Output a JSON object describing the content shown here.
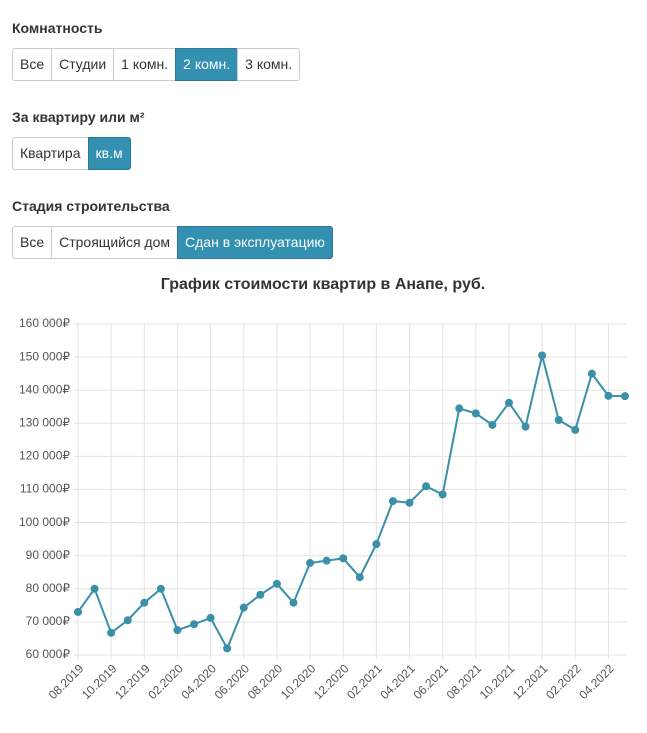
{
  "filters": [
    {
      "title": "Комнатность",
      "options": [
        "Все",
        "Студии",
        "1 комн.",
        "2 комн.",
        "3 комн."
      ],
      "active": 3
    },
    {
      "title": "За квартиру или м²",
      "options": [
        "Квартира",
        "кв.м"
      ],
      "active": 1
    },
    {
      "title": "Стадия строительства",
      "options": [
        "Все",
        "Строящийся дом",
        "Сдан в эксплуатацию"
      ],
      "active": 2
    }
  ],
  "chart_data": {
    "type": "line",
    "title": "График стоимости квартир в Анапе, руб.",
    "categories": [
      "08.2019",
      null,
      "10.2019",
      null,
      "12.2019",
      null,
      "02.2020",
      null,
      "04.2020",
      null,
      "06.2020",
      null,
      "08.2020",
      null,
      "10.2020",
      null,
      "12.2020",
      null,
      "02.2021",
      null,
      "04.2021",
      null,
      "06.2021",
      null,
      "08.2021",
      null,
      "10.2021",
      null,
      "12.2021",
      null,
      "02.2022",
      null,
      "04.2022",
      null
    ],
    "series": [
      {
        "color": "#3a8fa9",
        "values": [
          73000,
          80000,
          66700,
          70500,
          75800,
          80000,
          67500,
          69300,
          71200,
          62000,
          74300,
          78200,
          81500,
          75800,
          87800,
          88500,
          89200,
          83500,
          93500,
          106500,
          106000,
          111000,
          108500,
          134500,
          133000,
          129500,
          136200,
          129000,
          150500,
          131000,
          128000,
          145000,
          138300,
          138200
        ]
      }
    ],
    "ylim": [
      60000,
      160000
    ],
    "yticks": [
      {
        "value": 60000,
        "label": "60 000₽"
      },
      {
        "value": 70000,
        "label": "70 000₽"
      },
      {
        "value": 80000,
        "label": "80 000₽"
      },
      {
        "value": 90000,
        "label": "90 000₽"
      },
      {
        "value": 100000,
        "label": "100 000₽"
      },
      {
        "value": 110000,
        "label": "110 000₽"
      },
      {
        "value": 120000,
        "label": "120 000₽"
      },
      {
        "value": 130000,
        "label": "130 000₽"
      },
      {
        "value": 140000,
        "label": "140 000₽"
      },
      {
        "value": 150000,
        "label": "150 000₽"
      },
      {
        "value": 160000,
        "label": "160 000₽"
      }
    ],
    "grid": true
  }
}
